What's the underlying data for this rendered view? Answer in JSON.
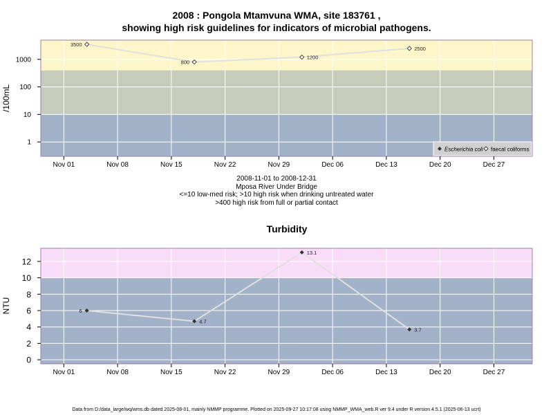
{
  "header": {
    "title_line1": "2008 : Pongola Mtamvuna WMA, site 183761 ,",
    "title_line2": "showing high risk guidelines for indicators of microbial pathogens."
  },
  "subtitle": {
    "line1": "2008-11-01 to 2008-12-31",
    "line2": "Mposa River Under Bridge",
    "line3": "<=10 low-med risk; >10 high risk when drinking untreated water",
    "line4": ">400 high risk from full or partial contact"
  },
  "footer": {
    "text": "Data from D:/data_large/wq/wms.db dated 2025-08-01, mainly NMMP programme. Plotted on 2025-09-27 10:17:08 using NMMP_WMA_web.R ver 9.4 under R version 4.5.1 (2025-06-13 ucrt)"
  },
  "colors": {
    "band_low": "#a2b2c8",
    "band_mid": "#c6ccbc",
    "band_high_micro": "#fdf6c9",
    "band_high_turb": "#f9dcf7",
    "line": "#e0e0e0",
    "grid": "#ffffff",
    "marker": "#333333"
  },
  "chart_data": [
    {
      "type": "line",
      "title": "",
      "ylabel": "/100mL",
      "yscale": "log",
      "ylim": [
        0.3,
        5000
      ],
      "yticks": [
        1,
        10,
        100,
        1000
      ],
      "ytick_labels": [
        "1",
        "10",
        "100",
        "1000"
      ],
      "xlim": [
        "2008-10-29",
        "2009-01-01"
      ],
      "xticks": [
        "2008-11-01",
        "2008-11-08",
        "2008-11-15",
        "2008-11-22",
        "2008-11-29",
        "2008-12-06",
        "2008-12-13",
        "2008-12-20",
        "2008-12-27"
      ],
      "xtick_labels": [
        "Nov 01",
        "Nov 08",
        "Nov 15",
        "Nov 22",
        "Nov 29",
        "Dec 06",
        "Dec 13",
        "Dec 20",
        "Dec 27"
      ],
      "bands": [
        {
          "from": 0.3,
          "to": 10,
          "color": "#a2b2c8"
        },
        {
          "from": 10,
          "to": 400,
          "color": "#c6ccbc"
        },
        {
          "from": 400,
          "to": 5000,
          "color": "#fdf6c9"
        }
      ],
      "grid": true,
      "legend": {
        "position": "bottom-right",
        "entries": [
          {
            "label": "Escherichia coli",
            "marker": "filled-diamond",
            "italic": true
          },
          {
            "label": "faecal coliforms",
            "marker": "open-diamond",
            "italic": false
          }
        ]
      },
      "series": [
        {
          "name": "faecal coliforms",
          "marker": "open-diamond",
          "x": [
            "2008-11-04",
            "2008-11-18",
            "2008-12-02",
            "2008-12-16"
          ],
          "y": [
            3500,
            800,
            1200,
            2500
          ],
          "labels": [
            "3500",
            "800",
            "1200",
            "2500"
          ],
          "label_side": [
            "left",
            "left",
            "right",
            "right"
          ]
        }
      ]
    },
    {
      "type": "line",
      "title": "Turbidity",
      "ylabel": "NTU",
      "ylim": [
        -0.5,
        13.6
      ],
      "yticks": [
        0,
        2,
        4,
        6,
        8,
        10,
        12
      ],
      "ytick_labels": [
        "0",
        "2",
        "4",
        "6",
        "8",
        "10",
        "12"
      ],
      "xlim": [
        "2008-10-29",
        "2009-01-01"
      ],
      "xticks": [
        "2008-11-01",
        "2008-11-08",
        "2008-11-15",
        "2008-11-22",
        "2008-11-29",
        "2008-12-06",
        "2008-12-13",
        "2008-12-20",
        "2008-12-27"
      ],
      "xtick_labels": [
        "Nov 01",
        "Nov 08",
        "Nov 15",
        "Nov 22",
        "Nov 29",
        "Dec 06",
        "Dec 13",
        "Dec 20",
        "Dec 27"
      ],
      "bands": [
        {
          "from": -0.5,
          "to": 10,
          "color": "#a2b2c8"
        },
        {
          "from": 10,
          "to": 13.6,
          "color": "#f9dcf7"
        }
      ],
      "grid": true,
      "series": [
        {
          "name": "Turbidity",
          "marker": "filled-diamond",
          "x": [
            "2008-11-04",
            "2008-11-18",
            "2008-12-02",
            "2008-12-16"
          ],
          "y": [
            6,
            4.7,
            13.1,
            3.7
          ],
          "labels": [
            "6",
            "4.7",
            "13.1",
            "3.7"
          ],
          "label_side": [
            "left",
            "right",
            "right",
            "right"
          ]
        }
      ]
    }
  ]
}
